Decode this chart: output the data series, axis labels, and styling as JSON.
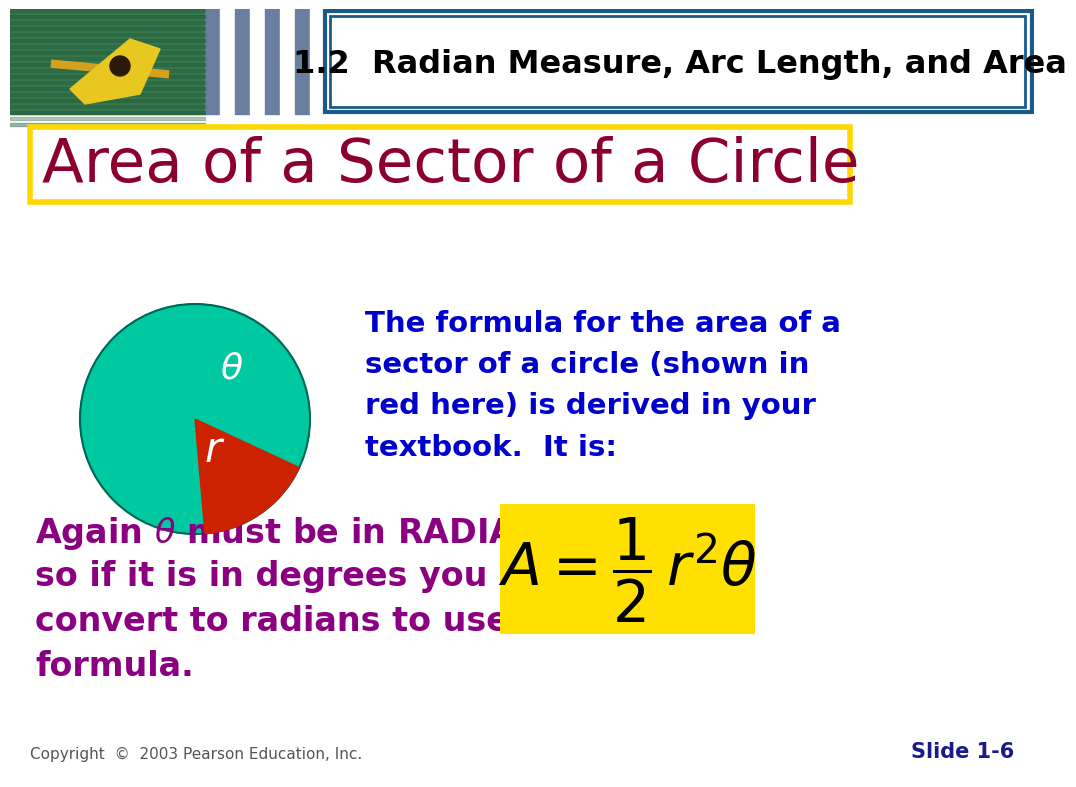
{
  "title_header": "1.2  Radian Measure, Arc Length, and Area",
  "slide_title": "Area of a Sector of a Circle",
  "slide_title_color": "#8B0030",
  "slide_title_box_color": "#FFD700",
  "header_box_color": "#1a5a8a",
  "bg_color": "#ffffff",
  "stripe_color": "#6a7ea0",
  "formula_bg": "#FFE000",
  "circle_color": "#00C8A0",
  "sector_color": "#CC2200",
  "body_text_color": "#8B0080",
  "desc_text_color": "#0000CC",
  "desc_text": "The formula for the area of a\nsector of a circle (shown in\nred here) is derived in your\ntextbook.  It is:",
  "bottom_text_line1": "Again ",
  "bottom_text_line2": "must be in RADIANS",
  "bottom_text_rest": "so if it is in degrees you must\nconvert to radians to use the\nformula.",
  "copyright": "Copyright  ©  2003 Pearson Education, Inc.",
  "slide_num": "Slide 1-6",
  "kayak_bg": "#3a7a50",
  "kayak_water": "#2a6040"
}
